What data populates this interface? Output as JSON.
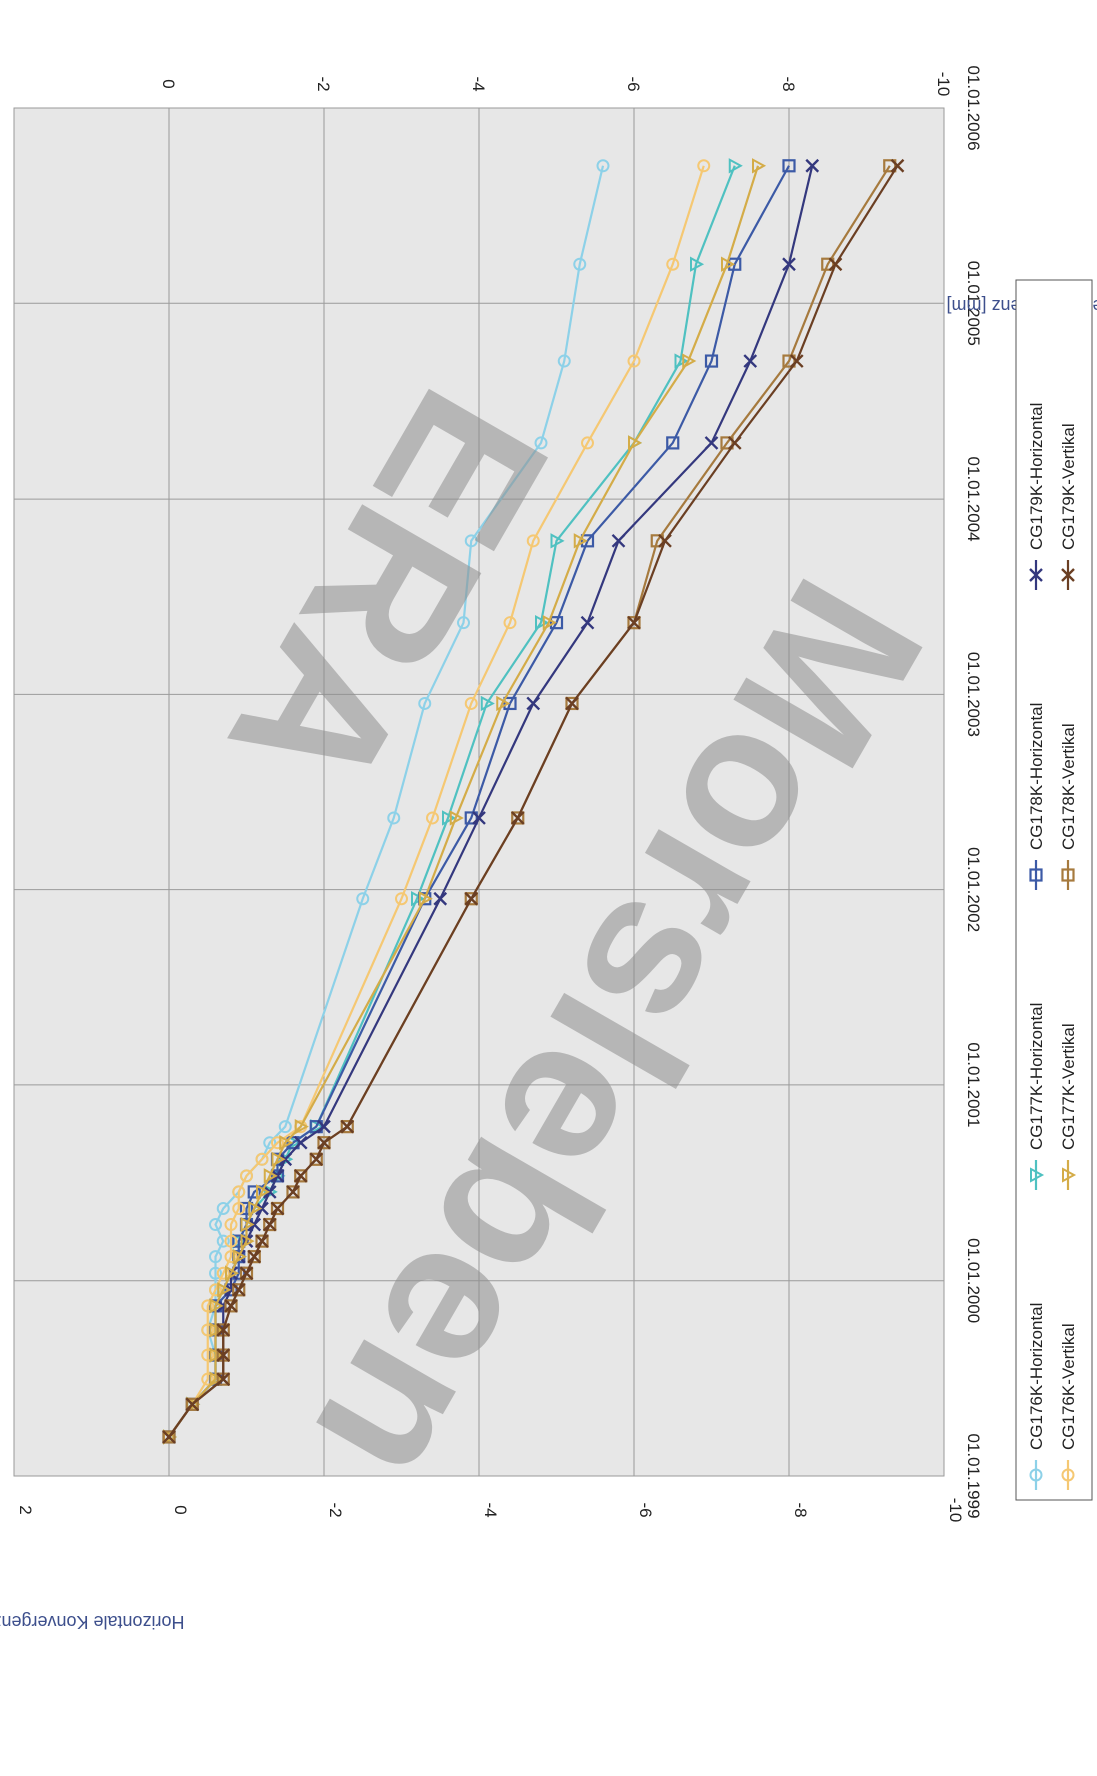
{
  "chart_data": {
    "type": "line",
    "ylabel_left": "Horizontale Konvergenz [mm]",
    "ylabel_right": "Vertikale Konvergenz [mm]",
    "ylim_left": [
      2,
      -10
    ],
    "ylim_right": [
      2,
      -10
    ],
    "y_ticks_left": [
      "2",
      "0",
      "-2",
      "-4",
      "-6",
      "-8",
      "-10"
    ],
    "y_ticks_right": [
      "0",
      "-2",
      "-4",
      "-6",
      "-8",
      "-10"
    ],
    "x_ticks": [
      "01.01.1999",
      "01.01.2000",
      "01.01.2001",
      "01.01.2002",
      "01.01.2003",
      "01.01.2004",
      "01.01.2005",
      "01.01.2006"
    ],
    "grid": true,
    "legend_position": "bottom",
    "watermark": [
      "ERA",
      "Morsleben"
    ],
    "x": [
      "1999-03-15",
      "1999-05-15",
      "1999-07-01",
      "1999-08-15",
      "1999-10-01",
      "1999-11-15",
      "1999-12-15",
      "2000-01-15",
      "2000-02-15",
      "2000-03-15",
      "2000-04-15",
      "2000-05-15",
      "2000-06-15",
      "2000-07-15",
      "2000-08-15",
      "2000-09-15",
      "2000-10-15",
      "2001-12-15",
      "2002-05-15",
      "2002-12-15",
      "2003-05-15",
      "2003-10-15",
      "2004-04-15",
      "2004-09-15",
      "2005-03-15",
      "2005-09-15"
    ],
    "series": [
      {
        "name": "CG176K-Horizontal",
        "axis": "left",
        "color": "#8dd1e8",
        "marker": "circle",
        "values": [
          0.0,
          -0.3,
          -0.6,
          -0.6,
          -0.5,
          -0.6,
          -0.6,
          -0.6,
          -0.6,
          -0.7,
          -0.6,
          -0.7,
          -0.9,
          -1.0,
          -1.2,
          -1.3,
          -1.5,
          -2.5,
          -2.9,
          -3.3,
          -3.8,
          -3.9,
          -4.8,
          -5.1,
          -5.3,
          -5.6
        ]
      },
      {
        "name": "CG177K-Horizontal",
        "axis": "left",
        "color": "#4fc1c1",
        "marker": "triangle",
        "values": [
          0.0,
          -0.3,
          -0.6,
          -0.6,
          -0.6,
          -0.6,
          -0.7,
          -0.8,
          -0.9,
          -0.9,
          -1.0,
          -1.1,
          -1.3,
          -1.4,
          -1.5,
          -1.6,
          -1.9,
          -3.2,
          -3.6,
          -4.1,
          -4.8,
          -5.0,
          -6.0,
          -6.6,
          -6.8,
          -7.3
        ]
      },
      {
        "name": "CG178K-Horizontal",
        "axis": "left",
        "color": "#3c5aa6",
        "marker": "square",
        "values": [
          0.0,
          -0.3,
          -0.6,
          -0.6,
          -0.6,
          -0.6,
          -0.8,
          -0.9,
          -0.9,
          -0.9,
          -1.0,
          -1.0,
          -1.1,
          -1.4,
          -1.4,
          -1.6,
          -1.9,
          -3.3,
          -3.9,
          -4.4,
          -5.0,
          -5.4,
          -6.5,
          -7.0,
          -7.3,
          -8.0
        ]
      },
      {
        "name": "CG179K-Horizontal",
        "axis": "left",
        "color": "#34387e",
        "marker": "x",
        "values": [
          0.0,
          -0.3,
          -0.7,
          -0.7,
          -0.7,
          -0.7,
          -0.8,
          -0.8,
          -0.9,
          -1.0,
          -1.1,
          -1.2,
          -1.3,
          -1.4,
          -1.5,
          -1.7,
          -2.0,
          -3.5,
          -4.0,
          -4.7,
          -5.4,
          -5.8,
          -7.0,
          -7.5,
          -8.0,
          -8.3
        ]
      },
      {
        "name": "CG176K-Vertikal",
        "axis": "right",
        "color": "#f5c873",
        "marker": "circle",
        "values": [
          0.0,
          -0.3,
          -0.5,
          -0.5,
          -0.5,
          -0.5,
          -0.6,
          -0.7,
          -0.8,
          -0.8,
          -0.8,
          -0.9,
          -0.9,
          -1.0,
          -1.2,
          -1.4,
          -1.7,
          -3.0,
          -3.4,
          -3.9,
          -4.4,
          -4.7,
          -5.4,
          -6.0,
          -6.5,
          -6.9
        ]
      },
      {
        "name": "CG177K-Vertikal",
        "axis": "right",
        "color": "#d4ac48",
        "marker": "triangle",
        "values": [
          0.0,
          -0.3,
          -0.6,
          -0.6,
          -0.6,
          -0.6,
          -0.7,
          -0.8,
          -0.9,
          -1.0,
          -1.0,
          -1.1,
          -1.2,
          -1.3,
          -1.4,
          -1.5,
          -1.7,
          -3.3,
          -3.7,
          -4.3,
          -4.9,
          -5.3,
          -6.0,
          -6.7,
          -7.2,
          -7.6
        ]
      },
      {
        "name": "CG178K-Vertikal",
        "axis": "right",
        "color": "#a67a3e",
        "marker": "square",
        "values": [
          0.0,
          -0.3,
          -0.7,
          -0.7,
          -0.7,
          -0.8,
          -0.9,
          -1.0,
          -1.1,
          -1.2,
          -1.3,
          -1.4,
          -1.6,
          -1.7,
          -1.9,
          -2.0,
          -2.3,
          -3.9,
          -4.5,
          -5.2,
          -6.0,
          -6.3,
          -7.2,
          -8.0,
          -8.5,
          -9.3
        ]
      },
      {
        "name": "CG179K-Vertikal",
        "axis": "right",
        "color": "#6b3f23",
        "marker": "x",
        "values": [
          0.0,
          -0.3,
          -0.7,
          -0.7,
          -0.7,
          -0.8,
          -0.9,
          -1.0,
          -1.1,
          -1.2,
          -1.3,
          -1.4,
          -1.6,
          -1.7,
          -1.9,
          -2.0,
          -2.3,
          -3.9,
          -4.5,
          -5.2,
          -6.0,
          -6.4,
          -7.3,
          -8.1,
          -8.6,
          -9.4
        ]
      }
    ]
  }
}
